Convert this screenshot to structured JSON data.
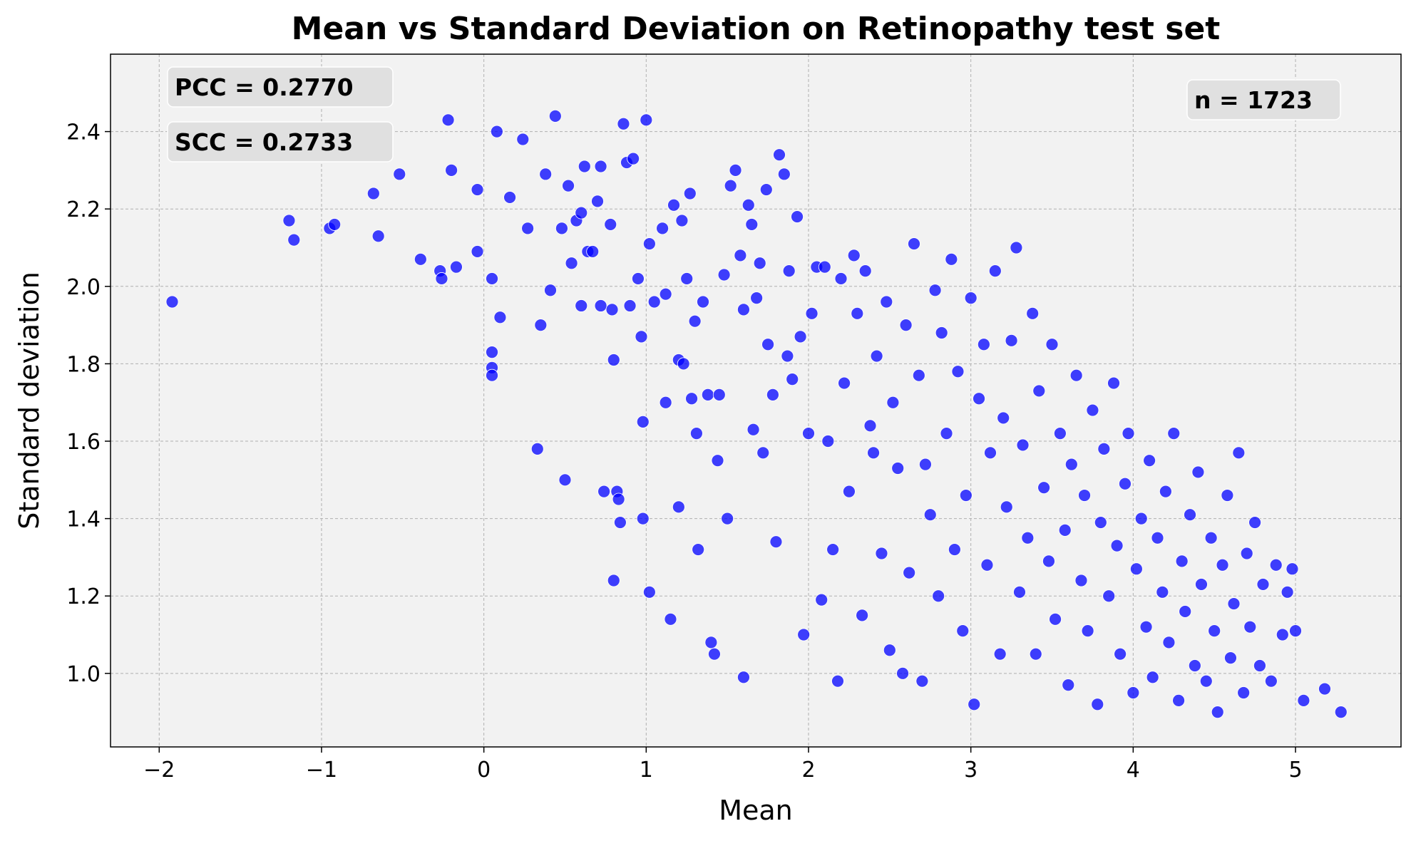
{
  "chart_data": {
    "type": "scatter",
    "title": "Mean vs Standard Deviation on Retinopathy test set",
    "xlabel": "Mean",
    "ylabel": "Standard deviation",
    "xlim": [
      -2.3,
      5.65
    ],
    "ylim": [
      0.81,
      2.6
    ],
    "xticks": [
      -2,
      -1,
      0,
      1,
      2,
      3,
      4,
      5
    ],
    "xtick_labels": [
      "−2",
      "−1",
      "0",
      "1",
      "2",
      "3",
      "4",
      "5"
    ],
    "yticks": [
      1.0,
      1.2,
      1.4,
      1.6,
      1.8,
      2.0,
      2.2,
      2.4
    ],
    "ytick_labels": [
      "1.0",
      "1.2",
      "1.4",
      "1.6",
      "1.8",
      "2.0",
      "2.2",
      "2.4"
    ],
    "grid": true,
    "marker_color": "#0000ff",
    "background_color": "#f2f2f2",
    "annotations": {
      "pcc": "PCC = 0.2770",
      "scc": "SCC = 0.2733",
      "n": "n = 1723"
    },
    "n_points": 1723,
    "points": [
      [
        -1.92,
        1.96
      ],
      [
        -1.2,
        2.17
      ],
      [
        -1.17,
        2.12
      ],
      [
        -0.95,
        2.15
      ],
      [
        -0.92,
        2.16
      ],
      [
        -0.68,
        2.24
      ],
      [
        -0.65,
        2.13
      ],
      [
        -0.52,
        2.29
      ],
      [
        -0.39,
        2.07
      ],
      [
        -0.27,
        2.04
      ],
      [
        -0.26,
        2.02
      ],
      [
        -0.2,
        2.3
      ],
      [
        -0.17,
        2.05
      ],
      [
        -0.22,
        2.43
      ],
      [
        -0.04,
        2.09
      ],
      [
        -0.04,
        2.25
      ],
      [
        0.08,
        2.4
      ],
      [
        0.05,
        2.02
      ],
      [
        0.05,
        1.83
      ],
      [
        0.05,
        1.79
      ],
      [
        0.05,
        1.77
      ],
      [
        0.1,
        1.92
      ],
      [
        0.16,
        2.23
      ],
      [
        0.24,
        2.38
      ],
      [
        0.27,
        2.15
      ],
      [
        0.33,
        1.58
      ],
      [
        0.35,
        1.9
      ],
      [
        0.38,
        2.29
      ],
      [
        0.41,
        1.99
      ],
      [
        0.44,
        2.44
      ],
      [
        0.48,
        2.15
      ],
      [
        0.5,
        1.5
      ],
      [
        0.52,
        2.26
      ],
      [
        0.54,
        2.06
      ],
      [
        0.57,
        2.17
      ],
      [
        0.6,
        2.19
      ],
      [
        0.6,
        1.95
      ],
      [
        0.62,
        2.31
      ],
      [
        0.64,
        2.09
      ],
      [
        0.67,
        2.09
      ],
      [
        0.7,
        2.22
      ],
      [
        0.72,
        1.95
      ],
      [
        0.72,
        2.31
      ],
      [
        0.74,
        1.47
      ],
      [
        0.78,
        2.16
      ],
      [
        0.79,
        1.94
      ],
      [
        0.8,
        1.81
      ],
      [
        0.8,
        1.24
      ],
      [
        0.82,
        1.47
      ],
      [
        0.83,
        1.45
      ],
      [
        0.84,
        1.39
      ],
      [
        0.86,
        2.42
      ],
      [
        0.88,
        2.32
      ],
      [
        0.9,
        1.95
      ],
      [
        0.92,
        2.33
      ],
      [
        0.95,
        2.02
      ],
      [
        0.97,
        1.87
      ],
      [
        0.98,
        1.65
      ],
      [
        0.98,
        1.4
      ],
      [
        1.0,
        2.43
      ],
      [
        1.02,
        2.11
      ],
      [
        1.02,
        1.21
      ],
      [
        1.05,
        1.96
      ],
      [
        1.1,
        2.15
      ],
      [
        1.12,
        1.98
      ],
      [
        1.12,
        1.7
      ],
      [
        1.15,
        1.14
      ],
      [
        1.17,
        2.21
      ],
      [
        1.2,
        1.81
      ],
      [
        1.2,
        1.43
      ],
      [
        1.22,
        2.17
      ],
      [
        1.23,
        1.8
      ],
      [
        1.25,
        2.02
      ],
      [
        1.27,
        2.24
      ],
      [
        1.28,
        1.71
      ],
      [
        1.3,
        1.91
      ],
      [
        1.31,
        1.62
      ],
      [
        1.32,
        1.32
      ],
      [
        1.35,
        1.96
      ],
      [
        1.38,
        1.72
      ],
      [
        1.4,
        1.08
      ],
      [
        1.42,
        1.05
      ],
      [
        1.44,
        1.55
      ],
      [
        1.45,
        1.72
      ],
      [
        1.48,
        2.03
      ],
      [
        1.5,
        1.4
      ],
      [
        1.52,
        2.26
      ],
      [
        1.55,
        2.3
      ],
      [
        1.58,
        2.08
      ],
      [
        1.6,
        1.94
      ],
      [
        1.6,
        0.99
      ],
      [
        1.63,
        2.21
      ],
      [
        1.65,
        2.16
      ],
      [
        1.66,
        1.63
      ],
      [
        1.68,
        1.97
      ],
      [
        1.7,
        2.06
      ],
      [
        1.72,
        1.57
      ],
      [
        1.74,
        2.25
      ],
      [
        1.75,
        1.85
      ],
      [
        1.78,
        1.72
      ],
      [
        1.8,
        1.34
      ],
      [
        1.82,
        2.34
      ],
      [
        1.85,
        2.29
      ],
      [
        1.87,
        1.82
      ],
      [
        1.88,
        2.04
      ],
      [
        1.9,
        1.76
      ],
      [
        1.93,
        2.18
      ],
      [
        1.95,
        1.87
      ],
      [
        1.97,
        1.1
      ],
      [
        2.0,
        1.62
      ],
      [
        2.02,
        1.93
      ],
      [
        2.05,
        2.05
      ],
      [
        2.08,
        1.19
      ],
      [
        2.1,
        2.05
      ],
      [
        2.12,
        1.6
      ],
      [
        2.15,
        1.32
      ],
      [
        2.18,
        0.98
      ],
      [
        2.2,
        2.02
      ],
      [
        2.22,
        1.75
      ],
      [
        2.25,
        1.47
      ],
      [
        2.28,
        2.08
      ],
      [
        2.3,
        1.93
      ],
      [
        2.33,
        1.15
      ],
      [
        2.35,
        2.04
      ],
      [
        2.38,
        1.64
      ],
      [
        2.4,
        1.57
      ],
      [
        2.42,
        1.82
      ],
      [
        2.45,
        1.31
      ],
      [
        2.48,
        1.96
      ],
      [
        2.5,
        1.06
      ],
      [
        2.52,
        1.7
      ],
      [
        2.55,
        1.53
      ],
      [
        2.58,
        1.0
      ],
      [
        2.6,
        1.9
      ],
      [
        2.62,
        1.26
      ],
      [
        2.65,
        2.11
      ],
      [
        2.68,
        1.77
      ],
      [
        2.7,
        0.98
      ],
      [
        2.72,
        1.54
      ],
      [
        2.75,
        1.41
      ],
      [
        2.78,
        1.99
      ],
      [
        2.8,
        1.2
      ],
      [
        2.82,
        1.88
      ],
      [
        2.85,
        1.62
      ],
      [
        2.88,
        2.07
      ],
      [
        2.9,
        1.32
      ],
      [
        2.92,
        1.78
      ],
      [
        2.95,
        1.11
      ],
      [
        2.97,
        1.46
      ],
      [
        3.0,
        1.97
      ],
      [
        3.02,
        0.92
      ],
      [
        3.05,
        1.71
      ],
      [
        3.08,
        1.85
      ],
      [
        3.1,
        1.28
      ],
      [
        3.12,
        1.57
      ],
      [
        3.15,
        2.04
      ],
      [
        3.18,
        1.05
      ],
      [
        3.2,
        1.66
      ],
      [
        3.22,
        1.43
      ],
      [
        3.25,
        1.86
      ],
      [
        3.28,
        2.1
      ],
      [
        3.3,
        1.21
      ],
      [
        3.32,
        1.59
      ],
      [
        3.35,
        1.35
      ],
      [
        3.38,
        1.93
      ],
      [
        3.4,
        1.05
      ],
      [
        3.42,
        1.73
      ],
      [
        3.45,
        1.48
      ],
      [
        3.48,
        1.29
      ],
      [
        3.5,
        1.85
      ],
      [
        3.52,
        1.14
      ],
      [
        3.55,
        1.62
      ],
      [
        3.58,
        1.37
      ],
      [
        3.6,
        0.97
      ],
      [
        3.62,
        1.54
      ],
      [
        3.65,
        1.77
      ],
      [
        3.68,
        1.24
      ],
      [
        3.7,
        1.46
      ],
      [
        3.72,
        1.11
      ],
      [
        3.75,
        1.68
      ],
      [
        3.78,
        0.92
      ],
      [
        3.8,
        1.39
      ],
      [
        3.82,
        1.58
      ],
      [
        3.85,
        1.2
      ],
      [
        3.88,
        1.75
      ],
      [
        3.9,
        1.33
      ],
      [
        3.92,
        1.05
      ],
      [
        3.95,
        1.49
      ],
      [
        3.97,
        1.62
      ],
      [
        4.0,
        0.95
      ],
      [
        4.02,
        1.27
      ],
      [
        4.05,
        1.4
      ],
      [
        4.08,
        1.12
      ],
      [
        4.1,
        1.55
      ],
      [
        4.12,
        0.99
      ],
      [
        4.15,
        1.35
      ],
      [
        4.18,
        1.21
      ],
      [
        4.2,
        1.47
      ],
      [
        4.22,
        1.08
      ],
      [
        4.25,
        1.62
      ],
      [
        4.28,
        0.93
      ],
      [
        4.3,
        1.29
      ],
      [
        4.32,
        1.16
      ],
      [
        4.35,
        1.41
      ],
      [
        4.38,
        1.02
      ],
      [
        4.4,
        1.52
      ],
      [
        4.42,
        1.23
      ],
      [
        4.45,
        0.98
      ],
      [
        4.48,
        1.35
      ],
      [
        4.5,
        1.11
      ],
      [
        4.52,
        0.9
      ],
      [
        4.55,
        1.28
      ],
      [
        4.58,
        1.46
      ],
      [
        4.6,
        1.04
      ],
      [
        4.62,
        1.18
      ],
      [
        4.65,
        1.57
      ],
      [
        4.68,
        0.95
      ],
      [
        4.7,
        1.31
      ],
      [
        4.72,
        1.12
      ],
      [
        4.75,
        1.39
      ],
      [
        4.78,
        1.02
      ],
      [
        4.8,
        1.23
      ],
      [
        4.85,
        0.98
      ],
      [
        4.88,
        1.28
      ],
      [
        4.92,
        1.1
      ],
      [
        4.95,
        1.21
      ],
      [
        4.98,
        1.27
      ],
      [
        5.0,
        1.11
      ],
      [
        5.05,
        0.93
      ],
      [
        5.18,
        0.96
      ],
      [
        5.28,
        0.9
      ]
    ]
  }
}
